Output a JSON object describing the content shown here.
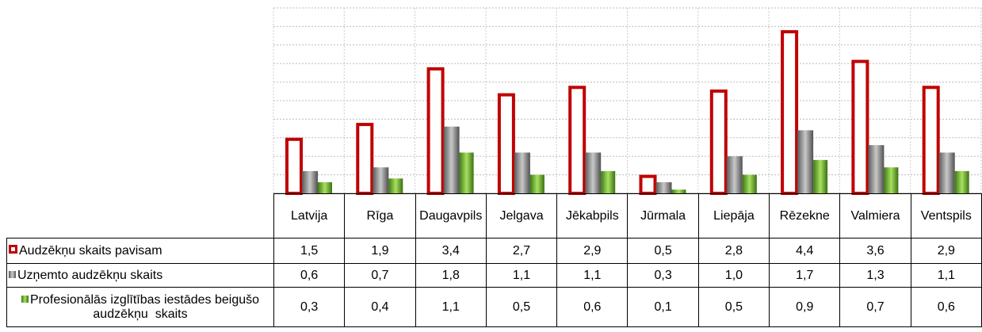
{
  "chart_data": {
    "type": "bar",
    "categories": [
      "Latvija",
      "Rīga",
      "Daugavpils",
      "Jelgava",
      "Jēkabpils",
      "Jūrmala",
      "Liepāja",
      "Rēzekne",
      "Valmiera",
      "Ventspils"
    ],
    "series": [
      {
        "name": "Audzēkņu skaits pavisam",
        "color": "#c00000",
        "values": [
          1.5,
          1.9,
          3.4,
          2.7,
          2.9,
          0.5,
          2.8,
          4.4,
          3.6,
          2.9
        ],
        "value_labels": [
          "1,5",
          "1,9",
          "3,4",
          "2,7",
          "2,9",
          "0,5",
          "2,8",
          "4,4",
          "3,6",
          "2,9"
        ]
      },
      {
        "name": "Uzņemto audzēkņu skaits",
        "color": "#808080",
        "values": [
          0.6,
          0.7,
          1.8,
          1.1,
          1.1,
          0.3,
          1.0,
          1.7,
          1.3,
          1.1
        ],
        "value_labels": [
          "0,6",
          "0,7",
          "1,8",
          "1,1",
          "1,1",
          "0,3",
          "1,0",
          "1,7",
          "1,3",
          "1,1"
        ]
      },
      {
        "name": "Profesionālās izglītības iestādes beigušo audzēkņu  skaits",
        "color": "#6aaa2a",
        "values": [
          0.3,
          0.4,
          1.1,
          0.5,
          0.6,
          0.1,
          0.5,
          0.9,
          0.7,
          0.6
        ],
        "value_labels": [
          "0,3",
          "0,4",
          "1,1",
          "0,5",
          "0,6",
          "0,1",
          "0,5",
          "0,9",
          "0,7",
          "0,6"
        ]
      }
    ],
    "ylim": [
      0,
      5
    ],
    "yticks": [
      0,
      0.5,
      1,
      1.5,
      2,
      2.5,
      3,
      3.5,
      4,
      4.5,
      5
    ],
    "grid": true
  }
}
